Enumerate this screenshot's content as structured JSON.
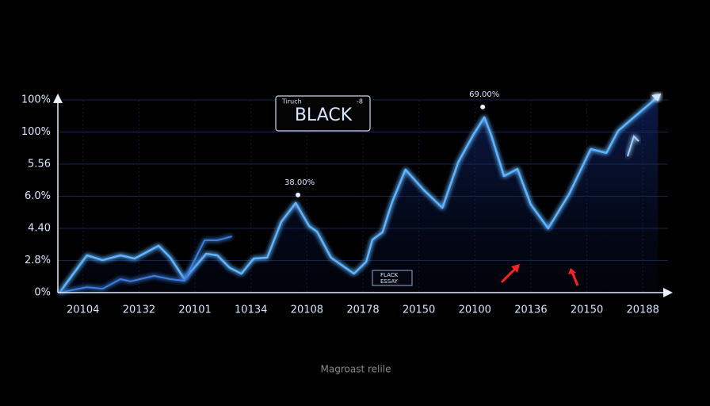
{
  "chart_data": {
    "type": "line",
    "xlim": [
      -0.45,
      10.45
    ],
    "ylim": [
      0,
      6
    ],
    "xticks": [
      {
        "value": 0,
        "label": "20104"
      },
      {
        "value": 1,
        "label": "20132"
      },
      {
        "value": 2,
        "label": "20101"
      },
      {
        "value": 3,
        "label": "10134"
      },
      {
        "value": 4,
        "label": "20108"
      },
      {
        "value": 5,
        "label": "20178"
      },
      {
        "value": 6,
        "label": "20150"
      },
      {
        "value": 7,
        "label": "20100"
      },
      {
        "value": 8,
        "label": "20136"
      },
      {
        "value": 9,
        "label": "20150"
      },
      {
        "value": 10,
        "label": "20188"
      }
    ],
    "yticks": [
      {
        "value": 0,
        "label": "0%"
      },
      {
        "value": 1,
        "label": "2.8%"
      },
      {
        "value": 2,
        "label": "4.40"
      },
      {
        "value": 3,
        "label": "6.0%"
      },
      {
        "value": 4,
        "label": "5.56"
      },
      {
        "value": 5,
        "label": "100%"
      },
      {
        "value": 6,
        "label": "100%"
      }
    ],
    "grid": true,
    "series": [
      {
        "color": "#5fb4ff",
        "x": [
          -0.42,
          0.07,
          0.35,
          0.67,
          0.92,
          1.35,
          1.56,
          1.81,
          2.2,
          2.4,
          2.62,
          2.83,
          3.05,
          3.29,
          3.54,
          3.8,
          4.04,
          4.18,
          4.43,
          4.84,
          5.06,
          5.17,
          5.35,
          5.52,
          5.76,
          6.09,
          6.42,
          6.7,
          6.97,
          7.17,
          7.29,
          7.52,
          7.76,
          8.0,
          8.31,
          8.68,
          9.07,
          9.35,
          9.56,
          9.84,
          10.27
        ],
        "values": [
          0,
          1.16,
          1.01,
          1.16,
          1.06,
          1.46,
          1.09,
          0.42,
          1.21,
          1.16,
          0.77,
          0.59,
          1.06,
          1.09,
          2.2,
          2.79,
          2.07,
          1.9,
          1.09,
          0.59,
          0.96,
          1.65,
          1.88,
          2.81,
          3.83,
          3.19,
          2.64,
          4.05,
          4.91,
          5.46,
          4.91,
          3.63,
          3.85,
          2.74,
          2.0,
          3.06,
          4.47,
          4.35,
          5.04,
          5.46,
          6.1
        ]
      },
      {
        "color": "#3d7fe0",
        "x": [
          -0.42,
          0.07,
          0.35,
          0.67,
          0.85,
          1.27,
          1.56,
          1.81,
          2.17,
          2.4,
          2.66
        ],
        "values": [
          0,
          0.17,
          0.12,
          0.42,
          0.35,
          0.52,
          0.42,
          0.37,
          1.63,
          1.63,
          1.75
        ]
      }
    ],
    "annotations": [
      {
        "text": "38.00%",
        "x": 3.84,
        "y": 3.04
      },
      {
        "text": "69.00%",
        "x": 7.14,
        "y": 5.78
      }
    ],
    "badge": {
      "small_left": "Tiruch",
      "small_right": "-8",
      "title": "BLACK"
    },
    "small_box": [
      "FLACK",
      "ESSAY"
    ],
    "caption": "Magroast relile"
  }
}
